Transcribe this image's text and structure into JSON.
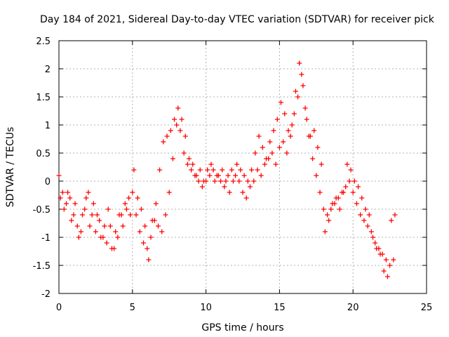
{
  "chart_data": {
    "type": "scatter",
    "title": "Day 184 of 2021, Sidereal Day-to-day VTEC variation (SDTVAR) for receiver pick",
    "xlabel": "GPS time / hours",
    "ylabel": "SDTVAR / TECUs",
    "xlim": [
      0,
      25
    ],
    "ylim": [
      -2,
      2.5
    ],
    "xticks": [
      0,
      5,
      10,
      15,
      20,
      25
    ],
    "yticks": [
      -2,
      -1.5,
      -1,
      -0.5,
      0,
      0.5,
      1,
      1.5,
      2,
      2.5
    ],
    "xtick_labels": [
      "0",
      "5",
      "10",
      "15",
      "20",
      "25"
    ],
    "ytick_labels": [
      "-2",
      "-1.5",
      "-1",
      "-0.5",
      "0",
      "0.5",
      "1",
      "1.5",
      "2",
      "2.5"
    ],
    "grid": true,
    "marker": "plus",
    "color": "#ff0000",
    "series": [
      {
        "x": [
          0.0,
          0.25,
          0.5,
          0.75,
          1.0,
          1.25,
          1.5,
          1.75,
          2.0,
          2.25,
          2.5,
          2.75,
          3.0,
          3.25,
          3.5,
          3.75,
          4.0,
          4.25,
          4.5,
          4.75,
          5.0,
          5.25,
          5.5,
          5.75,
          6.0,
          6.25,
          6.5,
          6.75,
          7.0,
          7.25,
          7.5,
          7.75,
          8.0,
          8.25,
          8.5,
          8.75,
          9.0,
          9.25,
          9.5,
          9.75,
          10.0,
          10.25,
          10.5,
          10.75,
          11.0,
          11.25,
          11.5,
          11.75,
          12.0,
          12.25,
          12.5,
          12.75,
          13.0,
          13.25,
          13.5,
          13.75,
          14.0,
          14.25,
          14.5,
          14.75,
          15.0,
          15.25,
          15.5,
          15.75,
          16.0,
          16.25,
          16.5,
          16.75,
          17.0,
          17.25,
          17.5,
          17.75,
          18.0,
          18.25,
          18.5,
          18.75,
          19.0,
          19.25,
          19.5,
          19.75,
          20.0,
          20.25,
          20.5,
          20.75,
          21.0,
          21.25,
          21.5,
          21.75,
          22.0,
          22.25,
          22.5,
          22.75
        ],
        "y": [
          0.1,
          -0.2,
          -0.4,
          -0.3,
          -0.6,
          -0.8,
          -0.9,
          -0.5,
          -0.2,
          -0.6,
          -0.9,
          -0.7,
          -1.0,
          -1.1,
          -0.8,
          -1.2,
          -1.0,
          -0.6,
          -0.4,
          -0.3,
          -0.2,
          -0.6,
          -0.9,
          -1.1,
          -1.2,
          -1.0,
          -0.7,
          -0.8,
          -0.9,
          -0.6,
          -0.2,
          0.4,
          1.0,
          0.9,
          0.5,
          0.3,
          0.2,
          0.1,
          0.0,
          -0.1,
          0.0,
          0.1,
          0.2,
          0.1,
          0.0,
          -0.1,
          0.1,
          0.2,
          0.1,
          0.0,
          -0.2,
          -0.3,
          -0.1,
          0.0,
          0.2,
          0.1,
          0.3,
          0.4,
          0.5,
          0.3,
          0.6,
          0.7,
          0.5,
          0.8,
          1.2,
          1.5,
          1.9,
          1.3,
          0.8,
          0.4,
          0.1,
          -0.2,
          -0.5,
          -0.6,
          -0.5,
          -0.4,
          -0.3,
          -0.2,
          -0.1,
          0.0,
          -0.2,
          -0.4,
          -0.6,
          -0.7,
          -0.8,
          -0.9,
          -1.1,
          -1.2,
          -1.3,
          -1.4,
          -1.5,
          -1.4
        ]
      },
      {
        "x": [
          0.1,
          0.35,
          0.6,
          0.85,
          1.1,
          1.35,
          1.6,
          1.85,
          2.1,
          2.35,
          2.6,
          2.85,
          3.1,
          3.35,
          3.6,
          3.85,
          4.1,
          4.35,
          4.6,
          4.85,
          5.1,
          5.35,
          5.6,
          5.85,
          6.1,
          6.35,
          6.6,
          6.85,
          7.1,
          7.35,
          7.6,
          7.85,
          8.1,
          8.35,
          8.6,
          8.85,
          9.1,
          9.35,
          9.6,
          9.85,
          10.1,
          10.35,
          10.6,
          10.85,
          11.1,
          11.35,
          11.6,
          11.85,
          12.1,
          12.35,
          12.6,
          12.85,
          13.1,
          13.35,
          13.6,
          13.85,
          14.1,
          14.35,
          14.6,
          14.85,
          15.1,
          15.35,
          15.6,
          15.85,
          16.1,
          16.35,
          16.6,
          16.85,
          17.1,
          17.35,
          17.6,
          17.85,
          18.1,
          18.35,
          18.6,
          18.85,
          19.1,
          19.35,
          19.6,
          19.85,
          20.1,
          20.35,
          20.6,
          20.85,
          21.1,
          21.35,
          21.6,
          21.85,
          22.1,
          22.35,
          22.6,
          22.85
        ],
        "y": [
          -0.3,
          -0.5,
          -0.2,
          -0.7,
          -0.4,
          -1.0,
          -0.6,
          -0.3,
          -0.8,
          -0.4,
          -0.6,
          -1.0,
          -0.8,
          -0.5,
          -1.2,
          -0.9,
          -0.6,
          -0.8,
          -0.5,
          -0.6,
          0.2,
          -0.3,
          -0.5,
          -0.8,
          -1.4,
          -0.7,
          -0.4,
          0.2,
          0.7,
          0.8,
          0.9,
          1.1,
          1.3,
          1.1,
          0.8,
          0.4,
          0.3,
          0.1,
          0.2,
          0.0,
          0.2,
          0.3,
          0.0,
          0.1,
          0.2,
          0.0,
          -0.2,
          0.0,
          0.3,
          0.2,
          0.1,
          0.0,
          0.2,
          0.5,
          0.8,
          0.6,
          0.4,
          0.7,
          0.9,
          1.1,
          1.4,
          1.2,
          0.9,
          1.0,
          1.6,
          2.1,
          1.7,
          1.1,
          0.8,
          0.9,
          0.6,
          0.3,
          -0.9,
          -0.7,
          -0.4,
          -0.3,
          -0.5,
          -0.2,
          0.3,
          0.2,
          0.0,
          -0.1,
          -0.3,
          -0.5,
          -0.6,
          -1.0,
          -1.2,
          -1.3,
          -1.6,
          -1.7,
          -0.7,
          -0.6
        ]
      }
    ]
  }
}
